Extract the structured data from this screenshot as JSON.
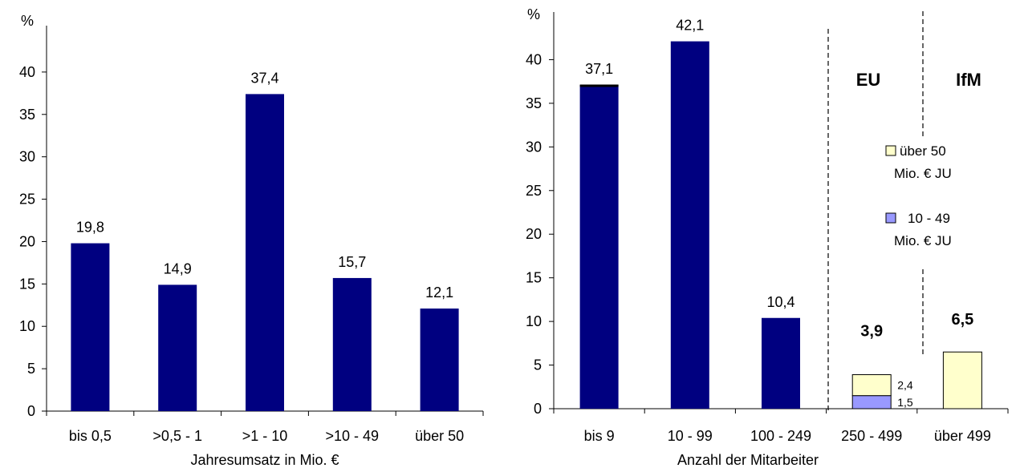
{
  "colors": {
    "bar": "#000080",
    "stack_top": "#FFFFCC",
    "stack_bottom": "#9999FF",
    "axis": "#000000"
  },
  "chart_data": [
    {
      "type": "bar",
      "unit_label": "%",
      "yticks": [
        "0",
        "5",
        "10",
        "15",
        "20",
        "25",
        "30",
        "35",
        "40"
      ],
      "ylim": [
        0,
        45
      ],
      "xlabel": "Jahresumsatz in Mio. €",
      "categories": [
        "bis 0,5",
        ">0,5 - 1",
        ">1 - 10",
        ">10 - 49",
        "über 50"
      ],
      "values": [
        19.8,
        14.9,
        37.4,
        15.7,
        12.1
      ],
      "value_labels": [
        "19,8",
        "14,9",
        "37,4",
        "15,7",
        "12,1"
      ]
    },
    {
      "type": "bar",
      "unit_label": "%",
      "yticks": [
        "0",
        "5",
        "10",
        "15",
        "20",
        "25",
        "30",
        "35",
        "40"
      ],
      "ylim": [
        0,
        45
      ],
      "xlabel": "Anzahl der Mitarbeiter",
      "categories": [
        "bis 9",
        "10 - 99",
        "100 - 249",
        "250 - 499",
        "über 499"
      ],
      "values": [
        37.1,
        42.1,
        10.4,
        3.9,
        6.5
      ],
      "value_labels": [
        "37,1",
        "42,1",
        "10,4",
        "3,9",
        "6,5"
      ],
      "stacked": {
        "category": "250 - 499",
        "segments": [
          {
            "value": 1.5,
            "label": "1,5",
            "series": "10 - 49 Mio. € JU"
          },
          {
            "value": 2.4,
            "label": "2,4",
            "series": "über 50 Mio. € JU"
          }
        ]
      },
      "region_labels": [
        "EU",
        "IfM"
      ],
      "legend": [
        {
          "line1": "über 50",
          "line2": "Mio. € JU",
          "color": "#FFFFCC"
        },
        {
          "line1": "10 - 49",
          "line2": "Mio. € JU",
          "color": "#9999FF"
        }
      ]
    }
  ]
}
